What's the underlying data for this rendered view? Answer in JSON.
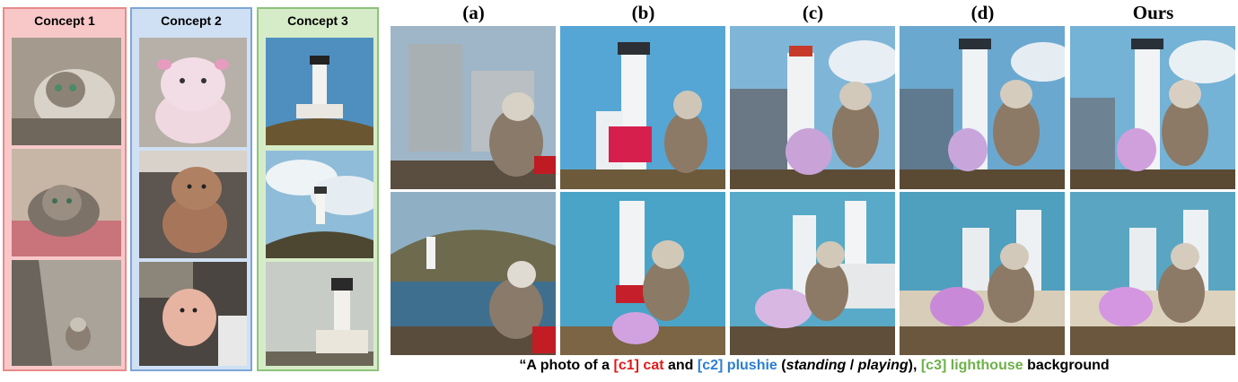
{
  "concepts": [
    {
      "label": "Concept 1",
      "bg": "#f8c8c8",
      "border": "#e88a8a",
      "subject": "cat"
    },
    {
      "label": "Concept 2",
      "bg": "#cfe0f4",
      "border": "#7ea6d6",
      "subject": "plushie"
    },
    {
      "label": "Concept 3",
      "bg": "#d6ecc8",
      "border": "#8cc47a",
      "subject": "lighthouse"
    }
  ],
  "columns": [
    "(a)",
    "(b)",
    "(c)",
    "(d)",
    "Ours"
  ],
  "caption": {
    "prefix": "“A photo of a ",
    "c1_tag": "[c1]",
    "c1_word": "cat",
    "mid1": " and ",
    "c2_tag": "[c2]",
    "c2_word": "plushie",
    "paren_open": " (",
    "standing": "standing",
    "slash": " / ",
    "playing": "playing",
    "paren_close": "), ",
    "c3_tag": "[c3]",
    "c3_word": "lighthouse",
    "suffix": " background",
    "colors": {
      "c1": "#e01b1b",
      "c2": "#2a7fd0",
      "c3": "#6fb04a"
    }
  }
}
